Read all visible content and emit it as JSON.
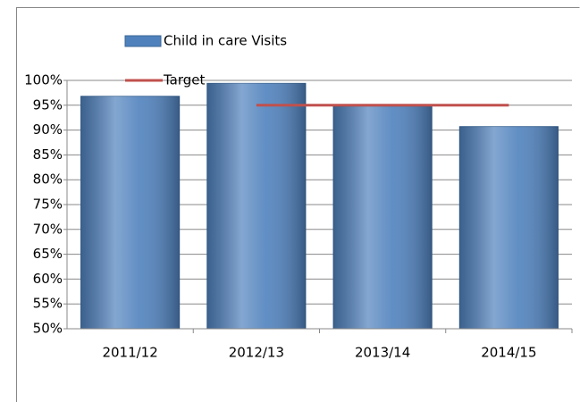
{
  "chart_data": {
    "type": "bar",
    "categories": [
      "2011/12",
      "2012/13",
      "2013/14",
      "2014/15"
    ],
    "series": [
      {
        "name": "Child in care Visits",
        "type": "bar",
        "color": "#4f81bd",
        "values": [
          96.8,
          99.4,
          94.8,
          90.7
        ]
      },
      {
        "name": "Target",
        "type": "line",
        "color": "#c0504d",
        "values": [
          null,
          95,
          95,
          95
        ]
      }
    ],
    "ylim": [
      50,
      100
    ],
    "yticks": [
      {
        "value": 50,
        "label": "50%"
      },
      {
        "value": 55,
        "label": "55%"
      },
      {
        "value": 60,
        "label": "60%"
      },
      {
        "value": 65,
        "label": "65%"
      },
      {
        "value": 70,
        "label": "70%"
      },
      {
        "value": 75,
        "label": "75%"
      },
      {
        "value": 80,
        "label": "80%"
      },
      {
        "value": 85,
        "label": "85%"
      },
      {
        "value": 90,
        "label": "90%"
      },
      {
        "value": 95,
        "label": "95%"
      },
      {
        "value": 100,
        "label": "100%"
      }
    ],
    "grid": true,
    "legend": "top"
  }
}
